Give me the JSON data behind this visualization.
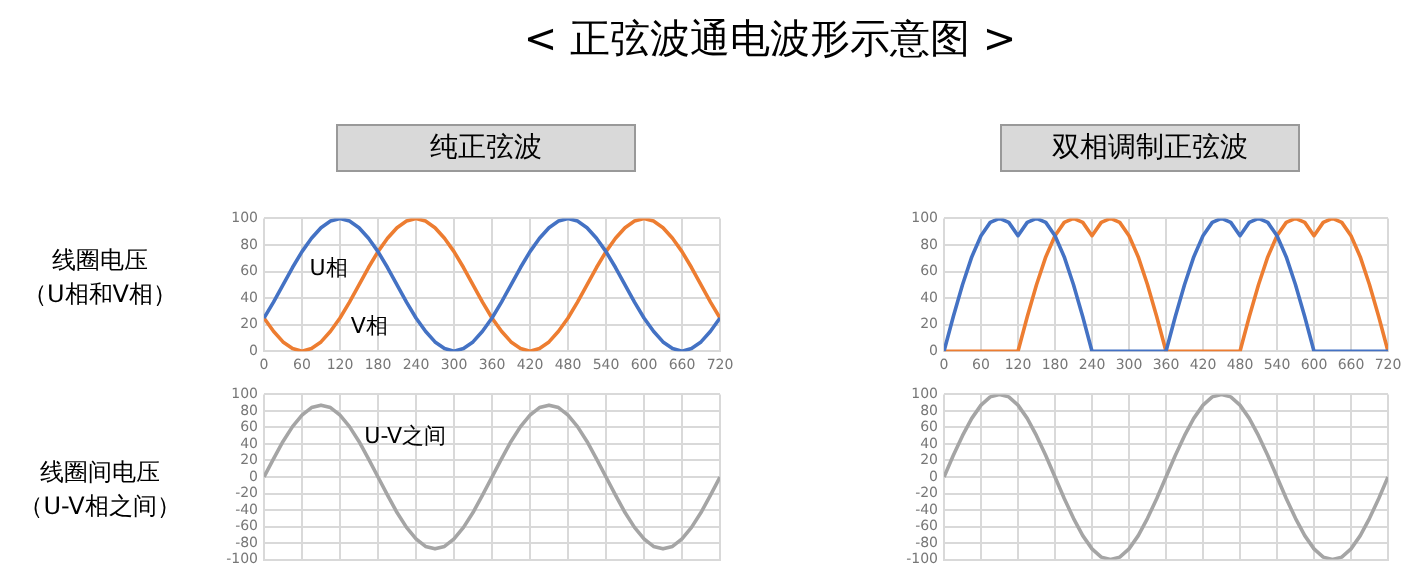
{
  "chart_data": [
    {
      "type": "line",
      "title": "< 正弦波通电波形示意图 >",
      "subtitle": "纯正弦波",
      "ylabel": "线圈电压（U相和V相）",
      "x": [
        0,
        15,
        30,
        45,
        60,
        75,
        90,
        105,
        120,
        135,
        150,
        165,
        180,
        195,
        210,
        225,
        240,
        255,
        270,
        285,
        300,
        315,
        330,
        345,
        360,
        375,
        390,
        405,
        420,
        435,
        450,
        465,
        480,
        495,
        510,
        525,
        540,
        555,
        570,
        585,
        600,
        615,
        630,
        645,
        660,
        675,
        690,
        705,
        720
      ],
      "series": [
        {
          "name": "U相",
          "color": "#4472c4",
          "values": [
            25,
            37,
            50,
            63,
            75,
            85,
            93,
            98,
            100,
            98,
            93,
            85,
            75,
            63,
            50,
            37,
            25,
            15,
            7,
            2,
            0,
            2,
            7,
            15,
            25,
            37,
            50,
            63,
            75,
            85,
            93,
            98,
            100,
            98,
            93,
            85,
            75,
            63,
            50,
            37,
            25,
            15,
            7,
            2,
            0,
            2,
            7,
            15,
            25
          ]
        },
        {
          "name": "V相",
          "color": "#ed7d31",
          "values": [
            25,
            15,
            7,
            2,
            0,
            2,
            7,
            15,
            25,
            37,
            50,
            63,
            75,
            85,
            93,
            98,
            100,
            98,
            93,
            85,
            75,
            63,
            50,
            37,
            25,
            15,
            7,
            2,
            0,
            2,
            7,
            15,
            25,
            37,
            50,
            63,
            75,
            85,
            93,
            98,
            100,
            98,
            93,
            85,
            75,
            63,
            50,
            37,
            25
          ]
        }
      ],
      "xlim": [
        0,
        720
      ],
      "xticks": [
        0,
        60,
        120,
        180,
        240,
        300,
        360,
        420,
        480,
        540,
        600,
        660,
        720
      ],
      "ylim": [
        0,
        100
      ],
      "yticks": [
        0,
        20,
        40,
        60,
        80,
        100
      ],
      "grid": true,
      "legend": false,
      "marker": "none",
      "line_style": "solid"
    },
    {
      "type": "line",
      "subtitle": "双相调制正弦波",
      "x": [
        0,
        15,
        30,
        45,
        60,
        75,
        90,
        105,
        120,
        135,
        150,
        165,
        180,
        195,
        210,
        225,
        240,
        255,
        270,
        285,
        300,
        315,
        330,
        345,
        360,
        375,
        390,
        405,
        420,
        435,
        450,
        465,
        480,
        495,
        510,
        525,
        540,
        555,
        570,
        585,
        600,
        615,
        630,
        645,
        660,
        675,
        690,
        705,
        720
      ],
      "series": [
        {
          "color": "#4472c4",
          "values": [
            0,
            26,
            50,
            71,
            87,
            97,
            100,
            97,
            87,
            97,
            100,
            97,
            87,
            71,
            50,
            26,
            0,
            0,
            0,
            0,
            0,
            0,
            0,
            0,
            0,
            26,
            50,
            71,
            87,
            97,
            100,
            97,
            87,
            97,
            100,
            97,
            87,
            71,
            50,
            26,
            0,
            0,
            0,
            0,
            0,
            0,
            0,
            0,
            0
          ]
        },
        {
          "color": "#ed7d31",
          "values": [
            0,
            0,
            0,
            0,
            0,
            0,
            0,
            0,
            0,
            26,
            50,
            71,
            87,
            97,
            100,
            97,
            87,
            97,
            100,
            97,
            87,
            71,
            50,
            26,
            0,
            0,
            0,
            0,
            0,
            0,
            0,
            0,
            0,
            26,
            50,
            71,
            87,
            97,
            100,
            97,
            87,
            97,
            100,
            97,
            87,
            71,
            50,
            26,
            0
          ]
        }
      ],
      "xlim": [
        0,
        720
      ],
      "xticks": [
        0,
        60,
        120,
        180,
        240,
        300,
        360,
        420,
        480,
        540,
        600,
        660,
        720
      ],
      "ylim": [
        0,
        100
      ],
      "yticks": [
        0,
        20,
        40,
        60,
        80,
        100
      ],
      "grid": true,
      "legend": false,
      "marker": "none",
      "line_style": "solid"
    },
    {
      "type": "line",
      "ylabel": "线圈间电压（U-V相之间）",
      "x": [
        0,
        15,
        30,
        45,
        60,
        75,
        90,
        105,
        120,
        135,
        150,
        165,
        180,
        195,
        210,
        225,
        240,
        255,
        270,
        285,
        300,
        315,
        330,
        345,
        360,
        375,
        390,
        405,
        420,
        435,
        450,
        465,
        480,
        495,
        510,
        525,
        540,
        555,
        570,
        585,
        600,
        615,
        630,
        645,
        660,
        675,
        690,
        705,
        720
      ],
      "series": [
        {
          "name": "U-V之间",
          "color": "#a5a5a5",
          "values": [
            0,
            22,
            43,
            61,
            75,
            84,
            87,
            84,
            75,
            61,
            43,
            22,
            0,
            -22,
            -43,
            -61,
            -75,
            -84,
            -87,
            -84,
            -75,
            -61,
            -43,
            -22,
            0,
            22,
            43,
            61,
            75,
            84,
            87,
            84,
            75,
            61,
            43,
            22,
            0,
            -22,
            -43,
            -61,
            -75,
            -84,
            -87,
            -84,
            -75,
            -61,
            -43,
            -22,
            0
          ]
        }
      ],
      "xlim": [
        0,
        720
      ],
      "xticks": [
        0,
        60,
        120,
        180,
        240,
        300,
        360,
        420,
        480,
        540,
        600,
        660,
        720
      ],
      "ylim": [
        -100,
        100
      ],
      "yticks": [
        -100,
        -80,
        -60,
        -40,
        -20,
        0,
        20,
        40,
        60,
        80,
        100
      ],
      "tick_labels": "y",
      "grid": true,
      "legend": false,
      "marker": "none",
      "line_style": "solid"
    },
    {
      "type": "line",
      "x": [
        0,
        15,
        30,
        45,
        60,
        75,
        90,
        105,
        120,
        135,
        150,
        165,
        180,
        195,
        210,
        225,
        240,
        255,
        270,
        285,
        300,
        315,
        330,
        345,
        360,
        375,
        390,
        405,
        420,
        435,
        450,
        465,
        480,
        495,
        510,
        525,
        540,
        555,
        570,
        585,
        600,
        615,
        630,
        645,
        660,
        675,
        690,
        705,
        720
      ],
      "series": [
        {
          "color": "#a5a5a5",
          "values": [
            0,
            26,
            50,
            71,
            87,
            97,
            100,
            97,
            87,
            71,
            50,
            26,
            0,
            -26,
            -50,
            -71,
            -87,
            -97,
            -100,
            -97,
            -87,
            -71,
            -50,
            -26,
            0,
            26,
            50,
            71,
            87,
            97,
            100,
            97,
            87,
            71,
            50,
            26,
            0,
            -26,
            -50,
            -71,
            -87,
            -97,
            -100,
            -97,
            -87,
            -71,
            -50,
            -26,
            0
          ]
        }
      ],
      "xlim": [
        0,
        720
      ],
      "xticks": [
        0,
        60,
        120,
        180,
        240,
        300,
        360,
        420,
        480,
        540,
        600,
        660,
        720
      ],
      "ylim": [
        -100,
        100
      ],
      "yticks": [
        -100,
        -80,
        -60,
        -40,
        -20,
        0,
        20,
        40,
        60,
        80,
        100
      ],
      "tick_labels": "y",
      "grid": true,
      "legend": false,
      "marker": "none",
      "line_style": "solid"
    }
  ]
}
